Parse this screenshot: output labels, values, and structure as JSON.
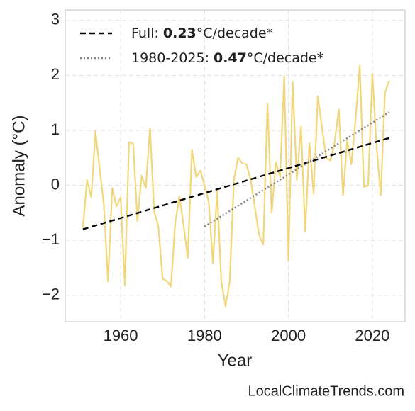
{
  "chart_data": {
    "type": "line",
    "xlabel": "Year",
    "ylabel": "Anomaly (°C)",
    "footer": "LocalClimateTrends.com",
    "xlim": [
      1946.8,
      2027.8
    ],
    "ylim": [
      -2.48,
      3.19
    ],
    "xticks": [
      1960,
      1980,
      2000,
      2020
    ],
    "yticks": [
      {
        "value": -2,
        "label": "−2"
      },
      {
        "value": -1,
        "label": "−1"
      },
      0,
      1,
      2,
      3
    ],
    "grid": true,
    "legend": "upper left",
    "series": [
      {
        "color": "#f2d67a",
        "x": [
          1951,
          1952,
          1953,
          1954,
          1955,
          1956,
          1957,
          1958,
          1959,
          1960,
          1961,
          1962,
          1963,
          1964,
          1965,
          1966,
          1967,
          1968,
          1969,
          1970,
          1971,
          1972,
          1973,
          1974,
          1975,
          1976,
          1977,
          1978,
          1979,
          1980,
          1981,
          1982,
          1983,
          1984,
          1985,
          1986,
          1987,
          1988,
          1989,
          1990,
          1991,
          1992,
          1993,
          1994,
          1995,
          1996,
          1997,
          1998,
          1999,
          2000,
          2001,
          2002,
          2003,
          2004,
          2005,
          2006,
          2007,
          2008,
          2009,
          2010,
          2011,
          2012,
          2013,
          2014,
          2015,
          2016,
          2017,
          2018,
          2019,
          2020,
          2021,
          2022,
          2023,
          2024
        ],
        "values": [
          -0.78,
          0.1,
          -0.22,
          0.98,
          0.3,
          -0.35,
          -1.75,
          -0.05,
          -0.38,
          -0.22,
          -1.82,
          0.79,
          0.76,
          -0.65,
          0.18,
          -0.05,
          1.04,
          -0.48,
          -0.75,
          -1.7,
          -1.74,
          -1.84,
          -0.7,
          -0.2,
          -0.72,
          -1.32,
          0.65,
          0.15,
          0.27,
          0.0,
          -0.3,
          -1.42,
          -0.1,
          -1.75,
          -2.2,
          -1.75,
          0.1,
          0.5,
          0.4,
          0.38,
          0.1,
          -0.4,
          -0.9,
          -1.08,
          1.48,
          -0.5,
          0.42,
          0.15,
          1.98,
          -1.37,
          1.88,
          0.1,
          1.07,
          -0.85,
          0.77,
          -0.15,
          1.62,
          1.05,
          0.5,
          0.45,
          0.78,
          1.38,
          -0.18,
          0.82,
          0.38,
          1.2,
          2.18,
          -0.03,
          0.0,
          2.03,
          0.72,
          -0.18,
          1.68,
          1.9
        ]
      },
      {
        "label": "Full:",
        "rate": 0.23,
        "unit": "°C/decade*",
        "color": "#000000",
        "dash": "dashed",
        "x": [
          1951,
          2024
        ],
        "values": [
          -0.8,
          0.86
        ]
      },
      {
        "label": "1980-2025:",
        "rate": 0.47,
        "unit": "°C/decade*",
        "color": "#808080",
        "dash": "dotted",
        "x": [
          1980,
          2024
        ],
        "values": [
          -0.75,
          1.33
        ]
      }
    ]
  }
}
